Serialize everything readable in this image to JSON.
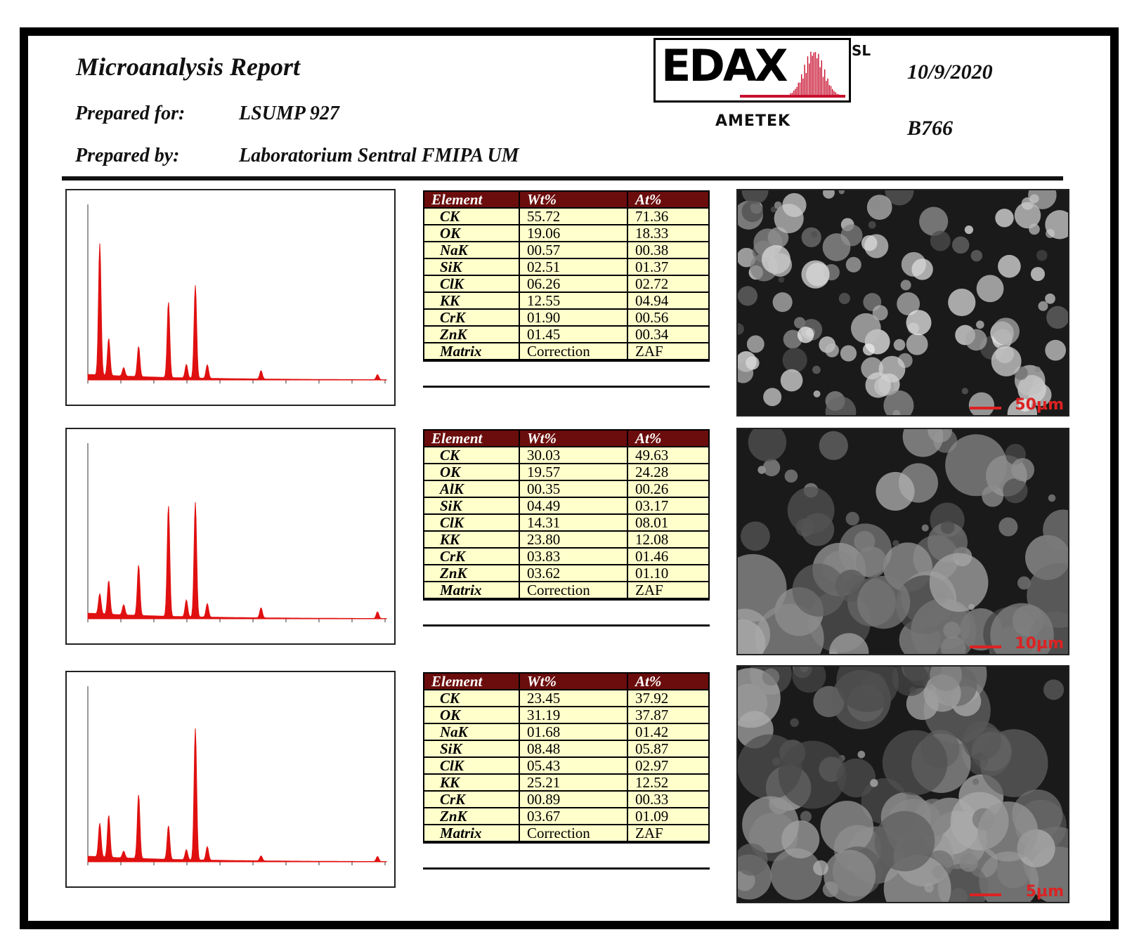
{
  "header": {
    "title": "Microanalysis Report",
    "prepared_for_label": "Prepared for:",
    "prepared_for": "LSUMP 927",
    "prepared_by_label": "Prepared by:",
    "prepared_by": "Laboratorium Sentral FMIPA UM",
    "logo": "EDAX",
    "logo_suffix": "SL",
    "company": "AMETEK",
    "date": "10/9/2020",
    "code": "B766"
  },
  "sections": [
    {
      "table": {
        "columns": [
          "Element",
          "Wt%",
          "At%"
        ],
        "rows": [
          [
            "CK",
            "55.72",
            "71.36"
          ],
          [
            "OK",
            "19.06",
            "18.33"
          ],
          [
            "NaK",
            "00.57",
            "00.38"
          ],
          [
            "SiK",
            "02.51",
            "01.37"
          ],
          [
            "ClK",
            "06.26",
            "02.72"
          ],
          [
            "KK",
            "12.55",
            "04.94"
          ],
          [
            "CrK",
            "01.90",
            "00.56"
          ],
          [
            "ZnK",
            "01.45",
            "00.34"
          ],
          [
            "Matrix",
            "Correction",
            "ZAF"
          ]
        ]
      },
      "scale_bar": "50µm"
    },
    {
      "table": {
        "columns": [
          "Element",
          "Wt%",
          "At%"
        ],
        "rows": [
          [
            "CK",
            "30.03",
            "49.63"
          ],
          [
            "OK",
            "19.57",
            "24.28"
          ],
          [
            "AlK",
            "00.35",
            "00.26"
          ],
          [
            "SiK",
            "04.49",
            "03.17"
          ],
          [
            "ClK",
            "14.31",
            "08.01"
          ],
          [
            "KK",
            "23.80",
            "12.08"
          ],
          [
            "CrK",
            "03.83",
            "01.46"
          ],
          [
            "ZnK",
            "03.62",
            "01.10"
          ],
          [
            "Matrix",
            "Correction",
            "ZAF"
          ]
        ]
      },
      "scale_bar": "10µm"
    },
    {
      "table": {
        "columns": [
          "Element",
          "Wt%",
          "At%"
        ],
        "rows": [
          [
            "CK",
            "23.45",
            "37.92"
          ],
          [
            "OK",
            "31.19",
            "37.87"
          ],
          [
            "NaK",
            "01.68",
            "01.42"
          ],
          [
            "SiK",
            "08.48",
            "05.87"
          ],
          [
            "ClK",
            "05.43",
            "02.97"
          ],
          [
            "KK",
            "25.21",
            "12.52"
          ],
          [
            "CrK",
            "00.89",
            "00.33"
          ],
          [
            "ZnK",
            "03.67",
            "01.09"
          ],
          [
            "Matrix",
            "Correction",
            "ZAF"
          ]
        ]
      },
      "scale_bar": "5µm"
    }
  ]
}
